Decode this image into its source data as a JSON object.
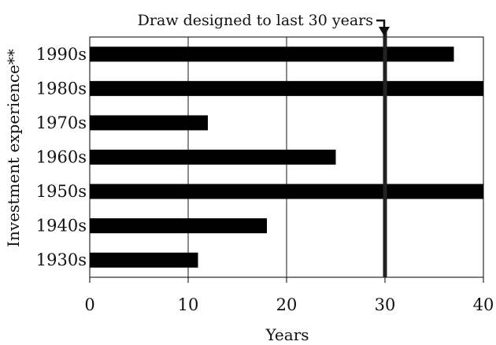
{
  "chart_data": {
    "type": "bar",
    "orientation": "horizontal",
    "categories": [
      "1990s",
      "1980s",
      "1970s",
      "1960s",
      "1950s",
      "1940s",
      "1930s"
    ],
    "values": [
      37,
      40,
      12,
      25,
      40,
      18,
      11
    ],
    "xlabel": "Years",
    "ylabel": "Investment experience**",
    "xlim": [
      0,
      40
    ],
    "xticks": [
      0,
      10,
      20,
      30,
      40
    ],
    "grid": "vertical",
    "bar_color": "#000000",
    "reference_line": {
      "x": 30,
      "color": "#222222"
    },
    "annotation": "Draw designed to last 30 years"
  }
}
